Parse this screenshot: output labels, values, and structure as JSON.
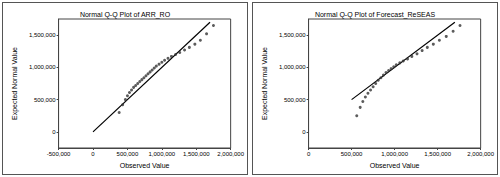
{
  "chart_data": [
    {
      "type": "scatter",
      "title": "Normal Q-Q Plot of ARR_RO",
      "x_label": "Observed Value",
      "y_label": "Expected Normal Value",
      "x": [
        380000,
        430000,
        470000,
        500000,
        530000,
        560000,
        590000,
        620000,
        650000,
        680000,
        710000,
        740000,
        770000,
        800000,
        830000,
        860000,
        890000,
        920000,
        960000,
        1000000,
        1040000,
        1090000,
        1140000,
        1200000,
        1260000,
        1330000,
        1400000,
        1480000,
        1560000,
        1650000,
        1750000
      ],
      "values": [
        300000,
        420000,
        500000,
        560000,
        610000,
        650000,
        690000,
        720000,
        750000,
        780000,
        810000,
        840000,
        870000,
        900000,
        930000,
        960000,
        990000,
        1020000,
        1050000,
        1080000,
        1110000,
        1140000,
        1170000,
        1200000,
        1230000,
        1270000,
        1310000,
        1360000,
        1420000,
        1520000,
        1650000
      ],
      "reference_line": {
        "x": [
          0,
          1700000
        ],
        "values": [
          0,
          1700000
        ]
      },
      "color": "#333333",
      "marker": "circle",
      "xlim": [
        -500000,
        2000000
      ],
      "xticks": [
        {
          "value": -500000,
          "label": "-500,000"
        },
        0,
        {
          "value": 500000,
          "label": "500,000"
        },
        {
          "value": 1000000,
          "label": "1,000,000"
        },
        {
          "value": 1500000,
          "label": "1,500,000"
        },
        {
          "value": 2000000,
          "label": "2,000,000"
        }
      ],
      "ylim": [
        -250000,
        1750000
      ],
      "yticks": [
        0,
        {
          "value": 500000,
          "label": "500,000"
        },
        {
          "value": 1000000,
          "label": "1,000,000"
        },
        {
          "value": 1500000,
          "label": "1,500,000"
        }
      ],
      "grid": false
    },
    {
      "type": "scatter",
      "title": "Normal Q-Q Plot of Forecast_ReSEAS",
      "x_label": "Observed Value",
      "y_label": "Expected Normal Value",
      "x": [
        560000,
        600000,
        630000,
        660000,
        690000,
        720000,
        750000,
        780000,
        810000,
        840000,
        870000,
        900000,
        930000,
        960000,
        990000,
        1020000,
        1060000,
        1100000,
        1150000,
        1200000,
        1260000,
        1320000,
        1380000,
        1450000,
        1520000,
        1600000,
        1680000,
        1760000
      ],
      "values": [
        250000,
        380000,
        470000,
        540000,
        600000,
        650000,
        700000,
        750000,
        800000,
        840000,
        880000,
        920000,
        950000,
        980000,
        1010000,
        1040000,
        1070000,
        1100000,
        1130000,
        1170000,
        1210000,
        1260000,
        1310000,
        1360000,
        1420000,
        1480000,
        1560000,
        1650000
      ],
      "reference_line": {
        "x": [
          500000,
          1700000
        ],
        "values": [
          500000,
          1700000
        ]
      },
      "color": "#333333",
      "marker": "circle",
      "xlim": [
        0,
        2000000
      ],
      "xticks": [
        0,
        {
          "value": 500000,
          "label": "500,000"
        },
        {
          "value": 1000000,
          "label": "1,000,000"
        },
        {
          "value": 1500000,
          "label": "1,500,000"
        },
        {
          "value": 2000000,
          "label": "2,000,000"
        }
      ],
      "ylim": [
        -250000,
        1750000
      ],
      "yticks": [
        0,
        {
          "value": 500000,
          "label": "500,000"
        },
        {
          "value": 1000000,
          "label": "1,000,000"
        },
        {
          "value": 1500000,
          "label": "1,500,000"
        }
      ],
      "grid": false
    }
  ]
}
